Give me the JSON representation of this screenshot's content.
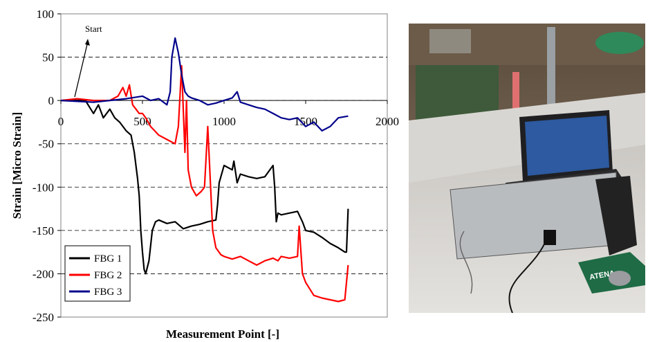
{
  "chart_data": {
    "type": "line",
    "title": "",
    "xlabel": "Measurement Point [-]",
    "ylabel": "Strain [Micro Strain]",
    "xlim": [
      0,
      2000
    ],
    "ylim": [
      -250,
      100
    ],
    "x_ticks": [
      "0",
      "500",
      "1000",
      "1500",
      "2000"
    ],
    "y_ticks": [
      "100",
      "50",
      "0",
      "-50",
      "-100",
      "-150",
      "-200",
      "-250"
    ],
    "gridlines": "horizontal dashed",
    "legend_position": "bottom-left",
    "annotation": "Start",
    "series": [
      {
        "name": "FBG 1",
        "color": "#000000",
        "x": [
          0,
          150,
          200,
          230,
          260,
          300,
          330,
          360,
          400,
          430,
          450,
          470,
          480,
          490,
          500,
          510,
          520,
          540,
          560,
          580,
          600,
          650,
          700,
          750,
          800,
          850,
          900,
          950,
          960,
          970,
          1000,
          1050,
          1060,
          1080,
          1100,
          1150,
          1200,
          1250,
          1300,
          1310,
          1320,
          1330,
          1350,
          1400,
          1450,
          1480,
          1500,
          1550,
          1600,
          1650,
          1700,
          1740,
          1750,
          1760
        ],
        "y": [
          0,
          0,
          -15,
          -5,
          -20,
          -10,
          -20,
          -25,
          -35,
          -40,
          -60,
          -90,
          -110,
          -150,
          -175,
          -195,
          -200,
          -185,
          -150,
          -140,
          -138,
          -142,
          -140,
          -148,
          -145,
          -143,
          -140,
          -138,
          -120,
          -95,
          -75,
          -80,
          -70,
          -95,
          -85,
          -88,
          -90,
          -88,
          -75,
          -100,
          -140,
          -130,
          -132,
          -130,
          -128,
          -140,
          -150,
          -152,
          -158,
          -165,
          -170,
          -175,
          -175,
          -125
        ]
      },
      {
        "name": "FBG 2",
        "color": "#ff0000",
        "x": [
          0,
          100,
          200,
          300,
          350,
          380,
          400,
          420,
          440,
          460,
          480,
          500,
          520,
          550,
          600,
          650,
          700,
          720,
          740,
          760,
          770,
          780,
          800,
          830,
          860,
          880,
          900,
          930,
          950,
          980,
          1000,
          1050,
          1100,
          1150,
          1200,
          1250,
          1300,
          1330,
          1350,
          1400,
          1450,
          1460,
          1480,
          1500,
          1550,
          1600,
          1650,
          1700,
          1740,
          1760
        ],
        "y": [
          0,
          2,
          0,
          0,
          5,
          15,
          5,
          18,
          -5,
          -10,
          -15,
          -15,
          -20,
          -30,
          -40,
          -45,
          -50,
          -30,
          40,
          -60,
          0,
          -80,
          -100,
          -110,
          -105,
          -100,
          -30,
          -150,
          -170,
          -178,
          -180,
          -183,
          -180,
          -185,
          -190,
          -185,
          -182,
          -185,
          -180,
          -182,
          -180,
          -145,
          -200,
          -210,
          -225,
          -228,
          -230,
          -232,
          -230,
          -190
        ]
      },
      {
        "name": "FBG 3",
        "color": "#00008b",
        "x": [
          0,
          200,
          400,
          500,
          550,
          600,
          650,
          670,
          680,
          700,
          720,
          740,
          760,
          780,
          800,
          850,
          900,
          950,
          1000,
          1050,
          1080,
          1100,
          1150,
          1200,
          1250,
          1300,
          1350,
          1400,
          1450,
          1500,
          1550,
          1600,
          1650,
          1700,
          1760
        ],
        "y": [
          0,
          -2,
          2,
          5,
          0,
          2,
          -5,
          10,
          50,
          72,
          55,
          30,
          10,
          5,
          3,
          0,
          -5,
          -3,
          0,
          3,
          10,
          -2,
          -5,
          -8,
          -10,
          -15,
          -20,
          -22,
          -20,
          -30,
          -25,
          -35,
          -30,
          -20,
          -18
        ]
      }
    ]
  },
  "photo": {
    "banner_text": "ATENA"
  }
}
